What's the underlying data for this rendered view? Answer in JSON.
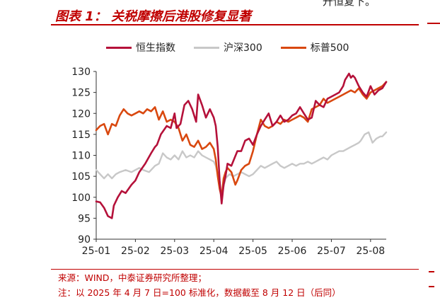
{
  "page": {
    "top_fragment": "升恒复下。",
    "figure_title": "图表 1：  关税摩擦后港股修复显著",
    "source_note": "来源：WIND，中泰证券研究所整理；",
    "footnote": "注：以 2025 年 4 月 7 日=100 标准化，数据截至 8 月 12 日（后同）"
  },
  "colors": {
    "hsi": "#b5113a",
    "csi300": "#c8c8c8",
    "sp500": "#d9480f",
    "accent": "#c00000"
  },
  "chart_data": {
    "type": "line",
    "title": "",
    "xlabel": "",
    "ylabel": "",
    "ylim": [
      90,
      130
    ],
    "yticks": [
      "130",
      "125",
      "120",
      "115",
      "110",
      "105",
      "100",
      "95",
      "90"
    ],
    "xlim": [
      0,
      7.4
    ],
    "xticks": [
      "25-01",
      "25-02",
      "25-03",
      "25-04",
      "25-05",
      "25-06",
      "25-07",
      "25-08"
    ],
    "grid": false,
    "legend_position": "top",
    "series": [
      {
        "name": "恒生指数",
        "x": [
          0.0,
          0.1,
          0.2,
          0.3,
          0.4,
          0.45,
          0.55,
          0.65,
          0.75,
          0.9,
          1.0,
          1.1,
          1.25,
          1.4,
          1.5,
          1.55,
          1.65,
          1.8,
          1.9,
          2.0,
          2.05,
          2.15,
          2.25,
          2.35,
          2.45,
          2.55,
          2.6,
          2.7,
          2.8,
          2.9,
          3.0,
          3.05,
          3.1,
          3.15,
          3.2,
          3.25,
          3.3,
          3.35,
          3.45,
          3.6,
          3.7,
          3.8,
          3.9,
          4.0,
          4.1,
          4.2,
          4.3,
          4.4,
          4.5,
          4.6,
          4.7,
          4.8,
          4.9,
          5.0,
          5.1,
          5.2,
          5.3,
          5.4,
          5.5,
          5.6,
          5.7,
          5.8,
          5.9,
          6.0,
          6.1,
          6.2,
          6.3,
          6.35,
          6.45,
          6.5,
          6.55,
          6.6,
          6.7,
          6.8,
          6.9,
          7.0,
          7.1,
          7.2,
          7.3,
          7.4
        ],
        "values": [
          99.0,
          98.8,
          97.5,
          95.5,
          95.0,
          98.0,
          100.0,
          101.5,
          101.0,
          103.0,
          104.0,
          106.0,
          108.0,
          110.5,
          112.0,
          112.5,
          115.0,
          117.0,
          116.5,
          120.0,
          116.5,
          117.5,
          122.0,
          123.0,
          121.0,
          118.0,
          124.5,
          122.0,
          119.0,
          121.0,
          119.0,
          117.0,
          112.0,
          104.0,
          98.5,
          103.0,
          105.0,
          108.0,
          107.5,
          111.0,
          111.0,
          113.5,
          114.0,
          112.5,
          115.0,
          117.0,
          118.5,
          120.0,
          117.0,
          118.0,
          119.5,
          118.0,
          118.5,
          119.5,
          120.0,
          121.5,
          120.0,
          118.5,
          119.0,
          123.0,
          122.0,
          121.5,
          123.5,
          124.0,
          124.5,
          125.0,
          126.5,
          128.0,
          129.5,
          128.5,
          129.0,
          128.5,
          126.5,
          125.0,
          124.0,
          126.5,
          124.5,
          125.5,
          126.0,
          127.5
        ]
      },
      {
        "name": "沪深300",
        "x": [
          0.0,
          0.1,
          0.2,
          0.3,
          0.4,
          0.5,
          0.6,
          0.75,
          0.9,
          1.0,
          1.1,
          1.2,
          1.35,
          1.5,
          1.6,
          1.7,
          1.8,
          1.9,
          2.0,
          2.1,
          2.2,
          2.3,
          2.4,
          2.5,
          2.6,
          2.7,
          2.8,
          2.9,
          3.0,
          3.05,
          3.1,
          3.15,
          3.2,
          3.25,
          3.3,
          3.4,
          3.5,
          3.6,
          3.7,
          3.8,
          3.9,
          4.0,
          4.1,
          4.2,
          4.3,
          4.4,
          4.5,
          4.6,
          4.7,
          4.8,
          4.9,
          5.0,
          5.1,
          5.2,
          5.3,
          5.4,
          5.5,
          5.6,
          5.7,
          5.8,
          5.9,
          6.0,
          6.1,
          6.2,
          6.3,
          6.4,
          6.5,
          6.6,
          6.7,
          6.75,
          6.85,
          6.95,
          7.05,
          7.15,
          7.25,
          7.3,
          7.4
        ],
        "values": [
          106.5,
          105.5,
          104.5,
          105.5,
          104.5,
          105.5,
          106.0,
          106.5,
          106.0,
          106.5,
          107.0,
          106.5,
          106.0,
          107.5,
          108.0,
          110.5,
          109.5,
          109.0,
          110.0,
          109.0,
          111.0,
          109.5,
          110.0,
          109.5,
          111.0,
          110.0,
          109.5,
          109.0,
          108.5,
          107.5,
          105.5,
          102.5,
          100.0,
          102.5,
          104.5,
          105.5,
          105.0,
          105.5,
          106.0,
          105.5,
          105.0,
          105.5,
          106.5,
          107.5,
          107.0,
          107.5,
          108.0,
          108.5,
          107.5,
          107.0,
          107.5,
          108.0,
          107.5,
          108.0,
          108.0,
          108.5,
          108.0,
          108.5,
          109.0,
          109.5,
          109.0,
          110.0,
          110.5,
          111.0,
          111.0,
          111.5,
          112.0,
          112.5,
          113.0,
          113.5,
          115.0,
          115.5,
          113.0,
          114.0,
          114.5,
          114.5,
          115.5
        ]
      },
      {
        "name": "标普500",
        "x": [
          0.0,
          0.1,
          0.2,
          0.3,
          0.4,
          0.5,
          0.6,
          0.7,
          0.8,
          0.9,
          1.0,
          1.1,
          1.2,
          1.3,
          1.4,
          1.5,
          1.6,
          1.7,
          1.8,
          1.9,
          2.0,
          2.1,
          2.2,
          2.3,
          2.4,
          2.5,
          2.6,
          2.7,
          2.8,
          2.9,
          3.0,
          3.05,
          3.1,
          3.15,
          3.2,
          3.25,
          3.3,
          3.35,
          3.45,
          3.55,
          3.6,
          3.7,
          3.8,
          3.9,
          4.0,
          4.1,
          4.2,
          4.3,
          4.4,
          4.5,
          4.6,
          4.7,
          4.8,
          4.9,
          5.0,
          5.1,
          5.2,
          5.3,
          5.4,
          5.5,
          5.6,
          5.7,
          5.8,
          5.9,
          6.0,
          6.1,
          6.2,
          6.3,
          6.4,
          6.5,
          6.6,
          6.7,
          6.8,
          6.9,
          7.0,
          7.1,
          7.2,
          7.3,
          7.4
        ],
        "values": [
          116.0,
          117.0,
          117.5,
          115.0,
          117.5,
          117.0,
          119.5,
          121.0,
          120.0,
          119.5,
          120.0,
          120.5,
          120.0,
          121.0,
          120.5,
          121.5,
          118.5,
          120.5,
          118.0,
          118.5,
          118.0,
          116.5,
          113.5,
          115.0,
          112.5,
          112.0,
          113.5,
          111.5,
          112.0,
          113.0,
          111.5,
          109.0,
          105.0,
          102.0,
          100.0,
          104.5,
          106.0,
          107.0,
          106.0,
          103.0,
          104.0,
          106.5,
          107.5,
          108.0,
          111.0,
          115.0,
          118.5,
          117.0,
          116.5,
          117.0,
          118.0,
          117.5,
          118.5,
          118.0,
          118.5,
          119.0,
          119.5,
          119.0,
          118.0,
          121.0,
          121.5,
          122.0,
          123.5,
          122.5,
          123.0,
          123.5,
          124.0,
          124.5,
          125.0,
          125.5,
          125.0,
          126.0,
          124.5,
          123.5,
          125.0,
          125.5,
          126.0,
          126.5,
          127.5
        ]
      }
    ]
  }
}
